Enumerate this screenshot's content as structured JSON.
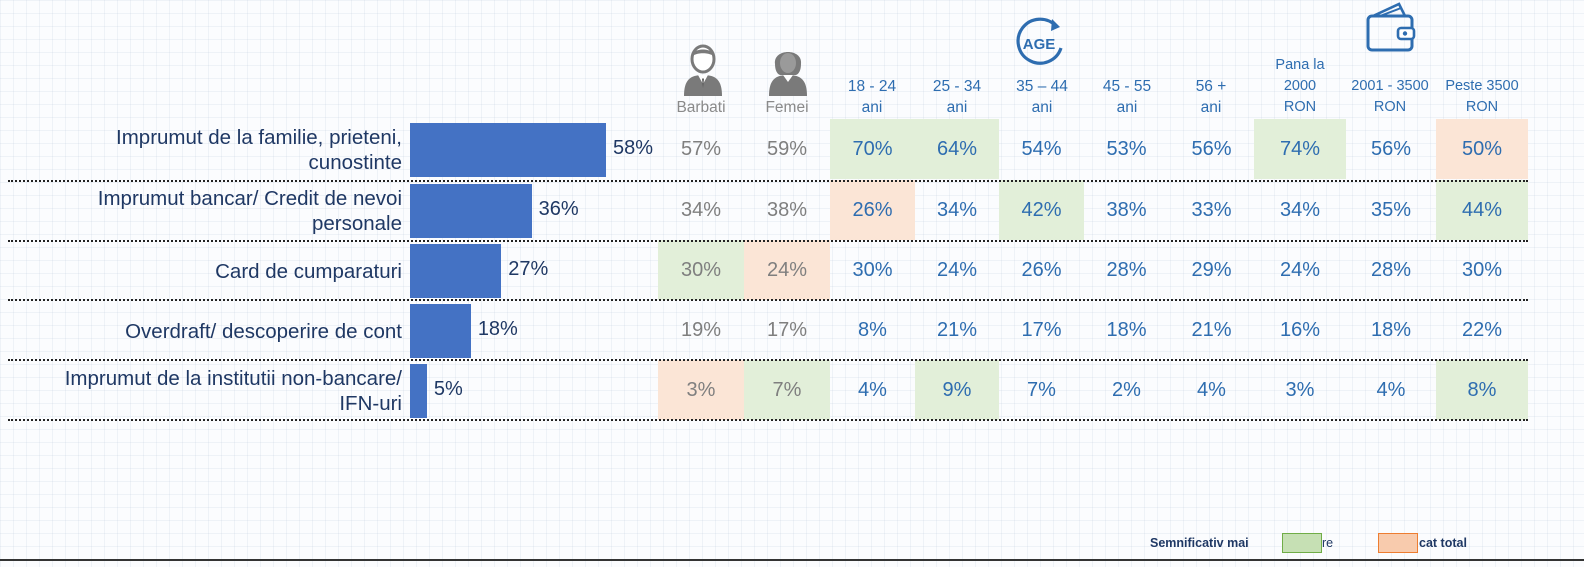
{
  "chart_data": {
    "type": "bar",
    "orientation": "horizontal",
    "categories": [
      [
        "Imprumut de la familie, prieteni,",
        "cunostinte"
      ],
      [
        "Imprumut bancar/ Credit de nevoi",
        "personale"
      ],
      [
        "Card de cumparaturi"
      ],
      [
        "Overdraft/ descoperire de cont"
      ],
      [
        "Imprumut de la institutii non-bancare/",
        "IFN-uri"
      ]
    ],
    "values": [
      58,
      36,
      27,
      18,
      5
    ],
    "value_labels": [
      "58%",
      "36%",
      "27%",
      "18%",
      "5%"
    ],
    "xlim": [
      0,
      100
    ],
    "bar_color": "#4472c4"
  },
  "columns": [
    {
      "label": [
        "Barbati"
      ],
      "group": "gender",
      "icon": "male-person-icon"
    },
    {
      "label": [
        "Femei"
      ],
      "group": "gender",
      "icon": "female-person-icon"
    },
    {
      "label": [
        "18 - 24",
        "ani"
      ],
      "group": "age"
    },
    {
      "label": [
        "25 - 34",
        "ani"
      ],
      "group": "age"
    },
    {
      "label": [
        "35 – 44",
        "ani"
      ],
      "group": "age",
      "icon": "age-icon"
    },
    {
      "label": [
        "45 - 55",
        "ani"
      ],
      "group": "age"
    },
    {
      "label": [
        "56 +",
        "ani"
      ],
      "group": "age"
    },
    {
      "label": [
        "Pana la",
        "2000",
        "RON"
      ],
      "group": "income"
    },
    {
      "label": [
        "2001 - 3500",
        "RON"
      ],
      "group": "income",
      "icon": "wallet-icon"
    },
    {
      "label": [
        "Peste 3500",
        "RON"
      ],
      "group": "income"
    }
  ],
  "age_icon_text": "AGE",
  "table": [
    [
      {
        "v": "57%"
      },
      {
        "v": "59%"
      },
      {
        "v": "70%",
        "sig": "higher"
      },
      {
        "v": "64%",
        "sig": "higher"
      },
      {
        "v": "54%"
      },
      {
        "v": "53%"
      },
      {
        "v": "56%"
      },
      {
        "v": "74%",
        "sig": "higher"
      },
      {
        "v": "56%"
      },
      {
        "v": "50%",
        "sig": "lower"
      }
    ],
    [
      {
        "v": "34%"
      },
      {
        "v": "38%"
      },
      {
        "v": "26%",
        "sig": "lower"
      },
      {
        "v": "34%"
      },
      {
        "v": "42%",
        "sig": "higher"
      },
      {
        "v": "38%"
      },
      {
        "v": "33%"
      },
      {
        "v": "34%"
      },
      {
        "v": "35%"
      },
      {
        "v": "44%",
        "sig": "higher"
      }
    ],
    [
      {
        "v": "30%",
        "sig": "higher"
      },
      {
        "v": "24%",
        "sig": "lower"
      },
      {
        "v": "30%"
      },
      {
        "v": "24%"
      },
      {
        "v": "26%"
      },
      {
        "v": "28%"
      },
      {
        "v": "29%"
      },
      {
        "v": "24%"
      },
      {
        "v": "28%"
      },
      {
        "v": "30%"
      }
    ],
    [
      {
        "v": "19%"
      },
      {
        "v": "17%"
      },
      {
        "v": "8%"
      },
      {
        "v": "21%"
      },
      {
        "v": "17%"
      },
      {
        "v": "18%"
      },
      {
        "v": "21%"
      },
      {
        "v": "16%"
      },
      {
        "v": "18%"
      },
      {
        "v": "22%"
      }
    ],
    [
      {
        "v": "3%",
        "sig": "lower"
      },
      {
        "v": "7%",
        "sig": "higher"
      },
      {
        "v": "4%"
      },
      {
        "v": "9%",
        "sig": "higher"
      },
      {
        "v": "7%"
      },
      {
        "v": "2%"
      },
      {
        "v": "4%"
      },
      {
        "v": "3%"
      },
      {
        "v": "4%"
      },
      {
        "v": "8%",
        "sig": "higher"
      }
    ]
  ],
  "legend": {
    "prefix": "Semnificativ mai",
    "higher_text": "re",
    "lower_text": "cat  total",
    "higher_color": "#c6e0b4",
    "higher_border": "#70ad47",
    "lower_color": "#f8cbad",
    "lower_border": "#ed7d31"
  },
  "colors": {
    "header_blue": "#2e6db0",
    "gender_gray": "#7f7f7f",
    "positive_bg": "#e2efd9",
    "negative_bg": "#fbe5d6"
  }
}
